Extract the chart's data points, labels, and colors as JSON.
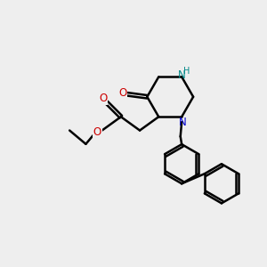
{
  "background_color": "#eeeeee",
  "atom_colors": {
    "N": "#0000cc",
    "O": "#cc0000",
    "NH": "#008888",
    "C": "#000000"
  },
  "bond_color": "#000000",
  "bond_width": 1.8,
  "figsize": [
    3.0,
    3.0
  ],
  "dpi": 100,
  "xlim": [
    0,
    10
  ],
  "ylim": [
    0,
    10
  ]
}
